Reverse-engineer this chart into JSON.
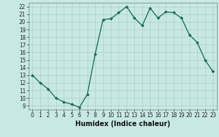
{
  "x": [
    0,
    1,
    2,
    3,
    4,
    5,
    6,
    7,
    8,
    9,
    10,
    11,
    12,
    13,
    14,
    15,
    16,
    17,
    18,
    19,
    20,
    21,
    22,
    23
  ],
  "y": [
    13,
    12,
    11.2,
    10,
    9.5,
    9.2,
    8.8,
    10.5,
    15.8,
    20.3,
    20.4,
    21.2,
    22.0,
    20.5,
    19.5,
    21.8,
    20.5,
    21.3,
    21.2,
    20.5,
    18.3,
    17.3,
    15.0,
    13.5
  ],
  "line_color": "#1a6b5a",
  "marker": "D",
  "marker_size": 2.0,
  "bg_color": "#c8e8e4",
  "grid_color": "#aacccc",
  "xlabel": "Humidex (Indice chaleur)",
  "xlim": [
    -0.5,
    23.5
  ],
  "ylim": [
    8.5,
    22.5
  ],
  "yticks": [
    9,
    10,
    11,
    12,
    13,
    14,
    15,
    16,
    17,
    18,
    19,
    20,
    21,
    22
  ],
  "xticks": [
    0,
    1,
    2,
    3,
    4,
    5,
    6,
    7,
    8,
    9,
    10,
    11,
    12,
    13,
    14,
    15,
    16,
    17,
    18,
    19,
    20,
    21,
    22,
    23
  ],
  "tick_fontsize": 5.5,
  "label_fontsize": 7.0,
  "line_width": 1.0
}
